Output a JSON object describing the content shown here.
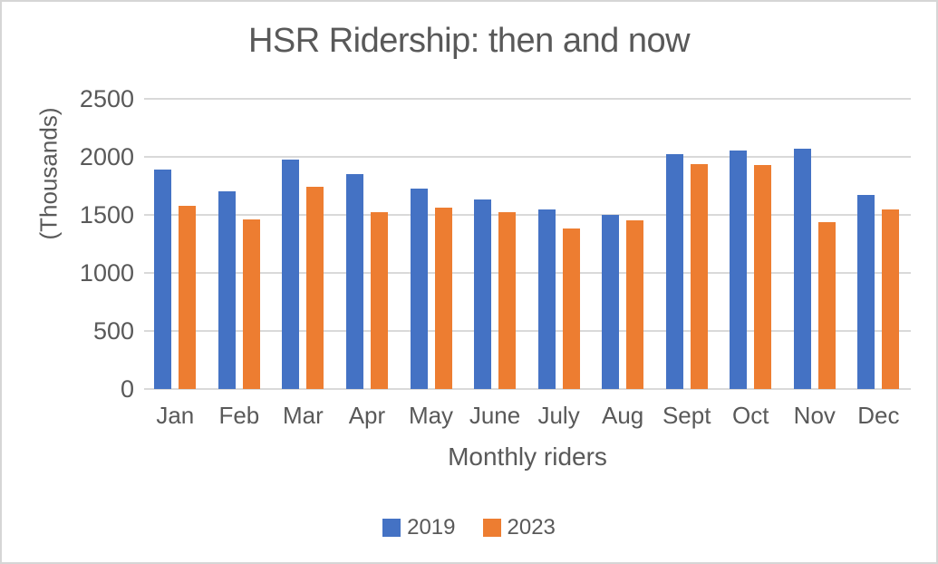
{
  "window": {
    "background": "#ffffff",
    "border_color": "#d6d6d6"
  },
  "chart_data": {
    "type": "bar",
    "title": "HSR Ridership: then and now",
    "xlabel": "Monthly riders",
    "ylabel": "(Thousands)",
    "categories": [
      "Jan",
      "Feb",
      "Mar",
      "Apr",
      "May",
      "June",
      "July",
      "Aug",
      "Sept",
      "Oct",
      "Nov",
      "Dec"
    ],
    "series": [
      {
        "name": "2019",
        "color": "#4472C4",
        "values": [
          1890,
          1700,
          1975,
          1855,
          1725,
          1630,
          1545,
          1500,
          2020,
          2055,
          2070,
          1670
        ]
      },
      {
        "name": "2023",
        "color": "#ED7D31",
        "values": [
          1580,
          1460,
          1740,
          1525,
          1560,
          1520,
          1385,
          1450,
          1940,
          1930,
          1435,
          1550
        ]
      }
    ],
    "ylim": [
      0,
      2500
    ],
    "yticks": [
      0,
      500,
      1000,
      1500,
      2000,
      2500
    ],
    "grid": "horizontal",
    "gridline_color": "#d9d9d9",
    "text_color": "#595959",
    "legend_position": "bottom",
    "legend_labels": [
      "2019",
      "2023"
    ]
  }
}
